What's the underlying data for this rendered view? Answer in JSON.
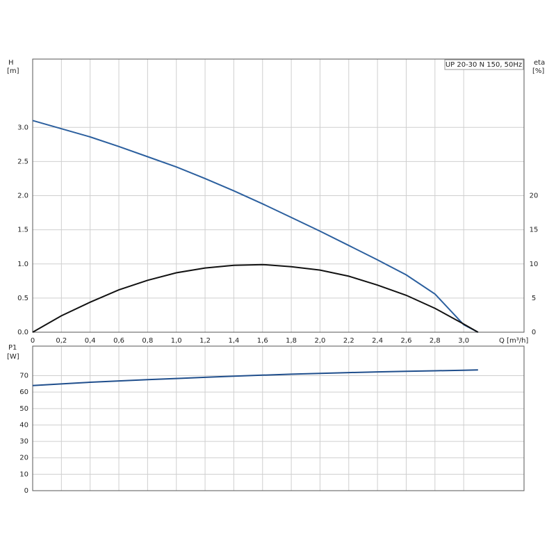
{
  "chart_data": [
    {
      "type": "line",
      "title": "UP 20-30 N 150, 50Hz",
      "ylabel": "H",
      "yunit": "[m]",
      "y2label": "eta",
      "y2unit": "[%]",
      "xlabel": "Q [m³/h]",
      "x": [
        0,
        0.2,
        0.4,
        0.6,
        0.8,
        1.0,
        1.2,
        1.4,
        1.6,
        1.8,
        2.0,
        2.2,
        2.4,
        2.6,
        2.8,
        3.0,
        3.1
      ],
      "xlim": [
        0,
        3.42
      ],
      "xticks": [
        0,
        {
          "value": 0.2,
          "label": "0,2"
        },
        {
          "value": 0.4,
          "label": "0,4"
        },
        {
          "value": 0.6,
          "label": "0,6"
        },
        {
          "value": 0.8,
          "label": "0,8"
        },
        {
          "value": 1.0,
          "label": "1,0"
        },
        {
          "value": 1.2,
          "label": "1,2"
        },
        {
          "value": 1.4,
          "label": "1,4"
        },
        {
          "value": 1.6,
          "label": "1,6"
        },
        {
          "value": 1.8,
          "label": "1,8"
        },
        {
          "value": 2.0,
          "label": "2,0"
        },
        {
          "value": 2.2,
          "label": "2,2"
        },
        {
          "value": 2.4,
          "label": "2,4"
        },
        {
          "value": 2.6,
          "label": "2,6"
        },
        {
          "value": 2.8,
          "label": "2,8"
        },
        {
          "value": 3.0,
          "label": "3,0"
        }
      ],
      "ylim": [
        0,
        4
      ],
      "yticks": [
        {
          "value": 0,
          "label": "0.0"
        },
        0.5,
        {
          "value": 1,
          "label": "1.0"
        },
        1.5,
        {
          "value": 2,
          "label": "2.0"
        },
        2.5,
        {
          "value": 3,
          "label": "3.0"
        }
      ],
      "y2lim": [
        0,
        40
      ],
      "y2ticks": [
        0,
        5,
        10,
        15,
        20
      ],
      "grid": true,
      "series": [
        {
          "color": "#2b5f9e",
          "values": [
            3.1,
            2.98,
            2.86,
            2.72,
            2.57,
            2.42,
            2.25,
            2.07,
            1.88,
            1.68,
            1.48,
            1.27,
            1.06,
            0.84,
            0.56,
            0.11,
            0
          ]
        },
        {
          "color": "#111111",
          "axis": "y2",
          "values": [
            0,
            2.4,
            4.4,
            6.2,
            7.6,
            8.7,
            9.4,
            9.8,
            9.9,
            9.6,
            9.1,
            8.2,
            6.9,
            5.4,
            3.5,
            1.2,
            0
          ]
        }
      ]
    },
    {
      "type": "line",
      "ylabel": "P1",
      "yunit": "[W]",
      "x": [
        0,
        0.2,
        0.4,
        0.6,
        0.8,
        1.0,
        1.2,
        1.4,
        1.6,
        1.8,
        2.0,
        2.2,
        2.4,
        2.6,
        2.8,
        3.0,
        3.1
      ],
      "xlim": [
        0,
        3.42
      ],
      "ylim": [
        0,
        88
      ],
      "yticks": [
        0,
        10,
        20,
        30,
        40,
        50,
        60,
        70
      ],
      "grid": true,
      "series": [
        {
          "color": "#1f4e8c",
          "values": [
            64,
            65,
            66,
            66.8,
            67.6,
            68.3,
            69,
            69.7,
            70.3,
            70.9,
            71.4,
            71.9,
            72.3,
            72.7,
            73,
            73.3,
            73.5
          ]
        }
      ]
    }
  ]
}
